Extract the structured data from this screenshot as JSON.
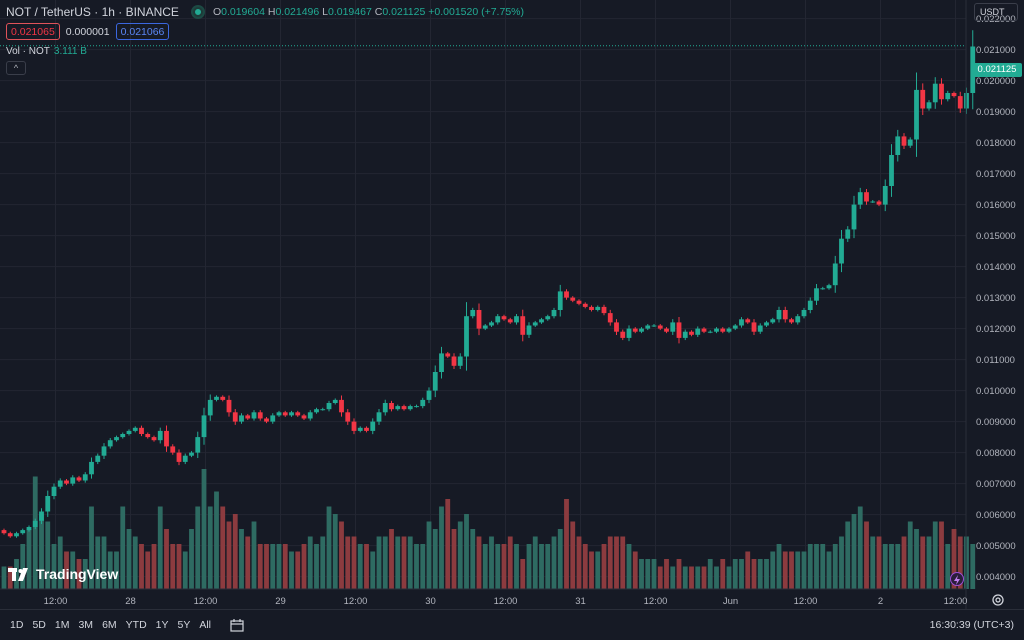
{
  "legend": {
    "symbol": "NOT / TetherUS · 1h · BINANCE",
    "o_label": "O",
    "o": "0.019604",
    "h_label": "H",
    "h": "0.021496",
    "l_label": "L",
    "l": "0.019467",
    "c_label": "C",
    "c": "0.021125",
    "change": "+0.001520 (+7.75%)",
    "sell": "0.021065",
    "spread": "0.000001",
    "buy": "0.021066",
    "vol_label": "Vol · NOT",
    "vol_value": "3.111 B",
    "collapse": "^"
  },
  "currency": "USDT",
  "last_price": "0.021125",
  "logo": "TradingView",
  "timeframes": [
    "1D",
    "5D",
    "1M",
    "3M",
    "6M",
    "YTD",
    "1Y",
    "5Y",
    "All"
  ],
  "clock": "16:30:39 (UTC+3)",
  "colors": {
    "up": "#22ab94",
    "down": "#f23645",
    "up_vol": "#2e6b62",
    "down_vol": "#8c3b3f",
    "bg": "#161a25",
    "grid": "#232632",
    "text": "#b2b5be"
  },
  "chart_data": {
    "type": "candlestick",
    "title": "NOT / TetherUS · 1h · BINANCE",
    "ylabel": "USDT",
    "ylim": [
      0.0036,
      0.0226
    ],
    "y_ticks": [
      "0.022000",
      "0.021000",
      "0.020000",
      "0.019000",
      "0.018000",
      "0.017000",
      "0.016000",
      "0.015000",
      "0.014000",
      "0.013000",
      "0.012000",
      "0.011000",
      "0.010000",
      "0.009000",
      "0.008000",
      "0.007000",
      "0.006000",
      "0.005000",
      "0.004000"
    ],
    "x_ticks": [
      {
        "label": "12:00",
        "bar": 8
      },
      {
        "label": "28",
        "bar": 20
      },
      {
        "label": "12:00",
        "bar": 32
      },
      {
        "label": "29",
        "bar": 44
      },
      {
        "label": "12:00",
        "bar": 56
      },
      {
        "label": "30",
        "bar": 68
      },
      {
        "label": "12:00",
        "bar": 80
      },
      {
        "label": "31",
        "bar": 92
      },
      {
        "label": "12:00",
        "bar": 104
      },
      {
        "label": "Jun",
        "bar": 116
      },
      {
        "label": "12:00",
        "bar": 128
      },
      {
        "label": "2",
        "bar": 140
      },
      {
        "label": "12:00",
        "bar": 152
      }
    ],
    "closes": [
      0.0054,
      0.0053,
      0.0054,
      0.0055,
      0.0056,
      0.0058,
      0.0061,
      0.0066,
      0.0069,
      0.0071,
      0.007,
      0.0072,
      0.0071,
      0.0073,
      0.0077,
      0.0079,
      0.0082,
      0.0084,
      0.0085,
      0.0086,
      0.0087,
      0.0088,
      0.0086,
      0.0085,
      0.0084,
      0.0087,
      0.0082,
      0.008,
      0.0077,
      0.0079,
      0.008,
      0.0085,
      0.0092,
      0.0097,
      0.0098,
      0.0097,
      0.0093,
      0.009,
      0.0092,
      0.0091,
      0.0093,
      0.0091,
      0.009,
      0.0092,
      0.0093,
      0.0092,
      0.0093,
      0.0092,
      0.0091,
      0.0093,
      0.0094,
      0.0094,
      0.0096,
      0.0097,
      0.0093,
      0.009,
      0.0087,
      0.0088,
      0.0087,
      0.009,
      0.0093,
      0.0096,
      0.0094,
      0.0095,
      0.0094,
      0.0095,
      0.0095,
      0.0097,
      0.01,
      0.0106,
      0.0112,
      0.0111,
      0.0108,
      0.0111,
      0.0124,
      0.0126,
      0.012,
      0.0121,
      0.0122,
      0.0124,
      0.0123,
      0.0122,
      0.0124,
      0.0118,
      0.0121,
      0.0122,
      0.0123,
      0.0124,
      0.0126,
      0.0132,
      0.013,
      0.0129,
      0.0128,
      0.0127,
      0.0126,
      0.0127,
      0.0125,
      0.0122,
      0.0119,
      0.0117,
      0.012,
      0.0119,
      0.012,
      0.0121,
      0.0121,
      0.012,
      0.0119,
      0.0122,
      0.0117,
      0.0119,
      0.0118,
      0.012,
      0.0119,
      0.0119,
      0.012,
      0.0119,
      0.012,
      0.0121,
      0.0123,
      0.0122,
      0.0119,
      0.0121,
      0.0122,
      0.0123,
      0.0126,
      0.0123,
      0.0122,
      0.0124,
      0.0126,
      0.0129,
      0.0133,
      0.0133,
      0.0134,
      0.0141,
      0.0149,
      0.0152,
      0.016,
      0.0164,
      0.0161,
      0.0161,
      0.016,
      0.0166,
      0.0176,
      0.0182,
      0.0179,
      0.0181,
      0.0197,
      0.0191,
      0.0193,
      0.0199,
      0.0194,
      0.0196,
      0.0195,
      0.0191,
      0.0196,
      0.0211
    ],
    "volumes_relative": [
      0.15,
      0.15,
      0.2,
      0.3,
      0.4,
      0.75,
      0.5,
      0.45,
      0.3,
      0.35,
      0.25,
      0.25,
      0.2,
      0.2,
      0.55,
      0.35,
      0.35,
      0.25,
      0.25,
      0.55,
      0.4,
      0.35,
      0.3,
      0.25,
      0.3,
      0.55,
      0.4,
      0.3,
      0.3,
      0.25,
      0.4,
      0.55,
      0.8,
      0.55,
      0.65,
      0.55,
      0.45,
      0.5,
      0.4,
      0.35,
      0.45,
      0.3,
      0.3,
      0.3,
      0.3,
      0.3,
      0.25,
      0.25,
      0.3,
      0.35,
      0.3,
      0.35,
      0.55,
      0.5,
      0.45,
      0.35,
      0.35,
      0.3,
      0.3,
      0.25,
      0.35,
      0.35,
      0.4,
      0.35,
      0.35,
      0.35,
      0.3,
      0.3,
      0.45,
      0.4,
      0.55,
      0.6,
      0.4,
      0.45,
      0.5,
      0.4,
      0.35,
      0.3,
      0.35,
      0.3,
      0.3,
      0.35,
      0.3,
      0.2,
      0.3,
      0.35,
      0.3,
      0.3,
      0.35,
      0.4,
      0.6,
      0.45,
      0.35,
      0.3,
      0.25,
      0.25,
      0.3,
      0.35,
      0.35,
      0.35,
      0.3,
      0.25,
      0.2,
      0.2,
      0.2,
      0.15,
      0.2,
      0.15,
      0.2,
      0.15,
      0.15,
      0.15,
      0.15,
      0.2,
      0.15,
      0.2,
      0.15,
      0.2,
      0.2,
      0.25,
      0.2,
      0.2,
      0.2,
      0.25,
      0.3,
      0.25,
      0.25,
      0.25,
      0.25,
      0.3,
      0.3,
      0.3,
      0.25,
      0.3,
      0.35,
      0.45,
      0.5,
      0.55,
      0.45,
      0.35,
      0.35,
      0.3,
      0.3,
      0.3,
      0.35,
      0.45,
      0.4,
      0.35,
      0.35,
      0.45,
      0.45,
      0.3,
      0.4,
      0.35,
      0.35,
      0.3
    ]
  }
}
